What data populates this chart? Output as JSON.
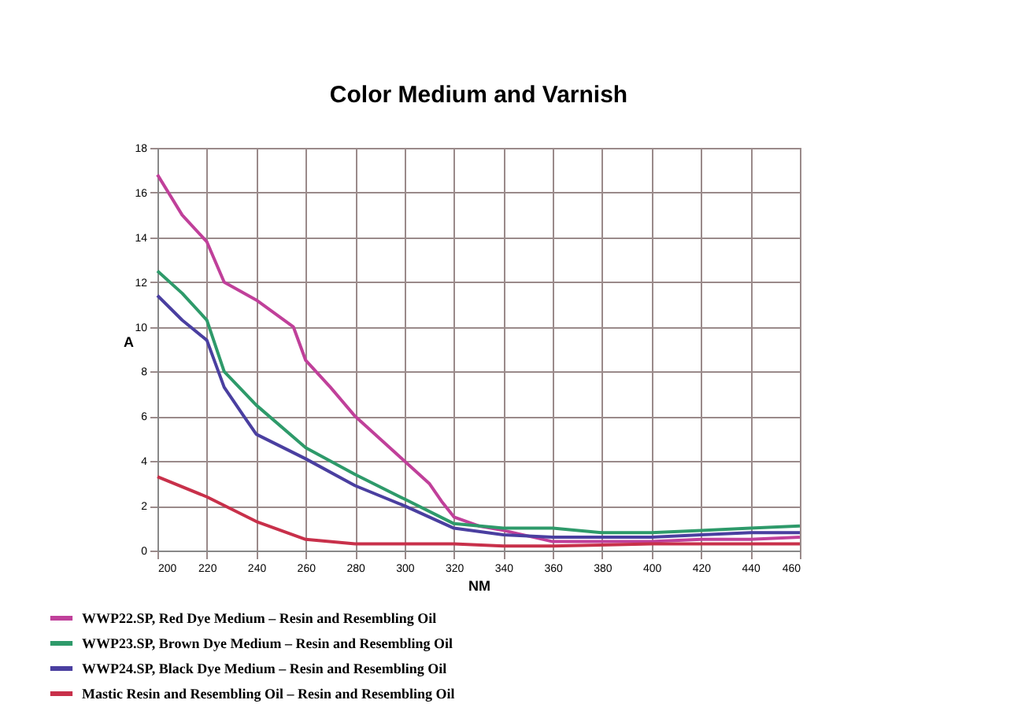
{
  "chart_data": {
    "type": "line",
    "title": "Color Medium and Varnish",
    "xlabel": "NM",
    "ylabel": "A",
    "xlim": [
      200,
      460
    ],
    "xticks": [
      200,
      220,
      240,
      260,
      280,
      300,
      320,
      340,
      360,
      380,
      400,
      420,
      440,
      460
    ],
    "ylim": [
      0,
      18
    ],
    "yticks": [
      0,
      2,
      4,
      6,
      8,
      10,
      12,
      14,
      16,
      18
    ],
    "grid": true,
    "legend": "bottom left",
    "marker": "none",
    "line_style": "solid",
    "series": [
      {
        "name": "WWP22.SP, Red Dye Medium – Resin and Resembling Oil",
        "color": "#c0409a",
        "x": [
          200,
          210,
          220,
          227,
          240,
          255,
          260,
          270,
          280,
          290,
          300,
          310,
          315,
          320,
          330,
          340,
          360,
          380,
          400,
          420,
          440,
          460
        ],
        "values": [
          16.8,
          15,
          13.8,
          12,
          11.2,
          10,
          8.5,
          7.3,
          6,
          5,
          4,
          3,
          2.2,
          1.5,
          1.1,
          0.9,
          0.4,
          0.4,
          0.4,
          0.5,
          0.5,
          0.6
        ]
      },
      {
        "name": "WWP23.SP, Brown Dye Medium – Resin and Resembling Oil",
        "color": "#2e9a6a",
        "x": [
          200,
          210,
          220,
          227,
          240,
          260,
          280,
          300,
          320,
          340,
          360,
          380,
          400,
          420,
          440,
          460
        ],
        "values": [
          12.5,
          11.5,
          10.3,
          8,
          6.5,
          4.6,
          3.4,
          2.3,
          1.2,
          1.0,
          1.0,
          0.8,
          0.8,
          0.9,
          1.0,
          1.1
        ]
      },
      {
        "name": "WWP24.SP, Black Dye Medium – Resin and Resembling Oil",
        "color": "#4a3fa0",
        "x": [
          200,
          210,
          220,
          227,
          235,
          240,
          260,
          280,
          300,
          320,
          340,
          360,
          380,
          400,
          420,
          440,
          460
        ],
        "values": [
          11.4,
          10.3,
          9.4,
          7.3,
          6,
          5.2,
          4.1,
          2.9,
          2.0,
          1.0,
          0.7,
          0.6,
          0.6,
          0.6,
          0.7,
          0.8,
          0.8
        ]
      },
      {
        "name": "Mastic Resin and Resembling Oil – Resin and Resembling Oil",
        "color": "#c8304a",
        "x": [
          200,
          220,
          240,
          260,
          280,
          300,
          320,
          340,
          360,
          400,
          460
        ],
        "values": [
          3.3,
          2.4,
          1.3,
          0.5,
          0.3,
          0.3,
          0.3,
          0.2,
          0.2,
          0.3,
          0.3
        ]
      }
    ]
  }
}
